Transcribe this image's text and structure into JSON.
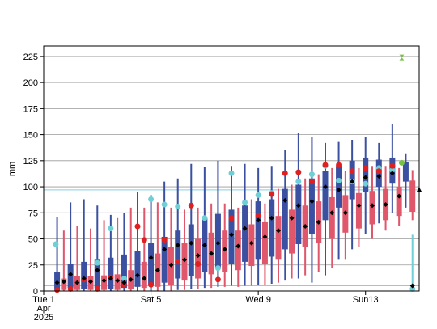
{
  "chart_data": {
    "type": "box",
    "ylabel": "mm",
    "ylim": [
      0,
      235
    ],
    "yticks": [
      0,
      25,
      50,
      75,
      100,
      125,
      150,
      175,
      200,
      225
    ],
    "xlim": [
      0,
      28
    ],
    "xticks": [
      {
        "x": 0,
        "lines": [
          "Tue 1",
          "Apr",
          "2025"
        ],
        "color": "#000000"
      },
      {
        "x": 8,
        "lines": [
          "Sat 5"
        ],
        "color": "#000000"
      },
      {
        "x": 16,
        "lines": [
          "Wed 9"
        ],
        "color": "#000000"
      },
      {
        "x": 24,
        "lines": [
          "Sun13"
        ],
        "color": "#cc0000"
      }
    ],
    "reference_lines": [
      {
        "y": 97,
        "color": "#7fd3e0"
      },
      {
        "y": 5,
        "color": "#7fd3e0"
      }
    ],
    "colors": {
      "blue_box": "#3b50a0",
      "red_box": "#e0566a",
      "mean_marker": "#000000",
      "red_marker": "#e02020",
      "cyan_marker": "#6fcfd6",
      "green_marker": "#77c043",
      "triangle_marker": "#000000",
      "grid": "#9a9a9a"
    },
    "series": [
      {
        "style": "blue",
        "boxes": [
          {
            "x": 1.0,
            "min": 0,
            "q1": 2,
            "med": 8,
            "q3": 18,
            "max": 71
          },
          {
            "x": 2.0,
            "min": 0,
            "q1": 3,
            "med": 14,
            "q3": 26,
            "max": 85
          },
          {
            "x": 3.0,
            "min": 0,
            "q1": 2,
            "med": 10,
            "q3": 28,
            "max": 88
          },
          {
            "x": 4.0,
            "min": 0,
            "q1": 3,
            "med": 12,
            "q3": 30,
            "max": 82
          },
          {
            "x": 5.0,
            "min": 0,
            "q1": 2,
            "med": 11,
            "q3": 32,
            "max": 73
          },
          {
            "x": 6.0,
            "min": 0,
            "q1": 3,
            "med": 12,
            "q3": 35,
            "max": 75
          },
          {
            "x": 7.0,
            "min": 0,
            "q1": 4,
            "med": 14,
            "q3": 38,
            "max": 95
          },
          {
            "x": 8.0,
            "min": 0,
            "q1": 6,
            "med": 18,
            "q3": 46,
            "max": 92
          },
          {
            "x": 9.0,
            "min": 0,
            "q1": 8,
            "med": 25,
            "q3": 52,
            "max": 105
          },
          {
            "x": 10.0,
            "min": 1,
            "q1": 12,
            "med": 30,
            "q3": 58,
            "max": 108
          },
          {
            "x": 11.0,
            "min": 2,
            "q1": 14,
            "med": 35,
            "q3": 64,
            "max": 122
          },
          {
            "x": 12.0,
            "min": 3,
            "q1": 18,
            "med": 43,
            "q3": 70,
            "max": 119
          },
          {
            "x": 13.0,
            "min": 4,
            "q1": 22,
            "med": 48,
            "q3": 74,
            "max": 125
          },
          {
            "x": 14.0,
            "min": 5,
            "q1": 26,
            "med": 52,
            "q3": 78,
            "max": 120
          },
          {
            "x": 15.0,
            "min": 5,
            "q1": 28,
            "med": 55,
            "q3": 82,
            "max": 122
          },
          {
            "x": 16.0,
            "min": 6,
            "q1": 30,
            "med": 58,
            "q3": 86,
            "max": 118
          },
          {
            "x": 17.0,
            "min": 7,
            "q1": 33,
            "med": 62,
            "q3": 88,
            "max": 120
          },
          {
            "x": 18.0,
            "min": 10,
            "q1": 40,
            "med": 70,
            "q3": 98,
            "max": 135
          },
          {
            "x": 19.0,
            "min": 12,
            "q1": 45,
            "med": 75,
            "q3": 102,
            "max": 152
          },
          {
            "x": 20.0,
            "min": 8,
            "q1": 55,
            "med": 86,
            "q3": 108,
            "max": 148
          },
          {
            "x": 21.0,
            "min": 15,
            "q1": 68,
            "med": 95,
            "q3": 115,
            "max": 142
          },
          {
            "x": 22.0,
            "min": 30,
            "q1": 80,
            "med": 100,
            "q3": 120,
            "max": 143
          },
          {
            "x": 23.0,
            "min": 40,
            "q1": 88,
            "med": 105,
            "q3": 125,
            "max": 145
          },
          {
            "x": 24.0,
            "min": 55,
            "q1": 95,
            "med": 108,
            "q3": 128,
            "max": 148
          },
          {
            "x": 25.0,
            "min": 65,
            "q1": 100,
            "med": 110,
            "q3": 126,
            "max": 142
          },
          {
            "x": 26.0,
            "min": 75,
            "q1": 103,
            "med": 112,
            "q3": 128,
            "max": 160
          },
          {
            "x": 27.0,
            "min": 80,
            "q1": 105,
            "med": 114,
            "q3": 124,
            "max": 132
          }
        ]
      },
      {
        "style": "red",
        "boxes": [
          {
            "x": 1.5,
            "min": 0,
            "q1": 1,
            "med": 4,
            "q3": 12,
            "max": 58
          },
          {
            "x": 2.5,
            "min": 0,
            "q1": 1,
            "med": 5,
            "q3": 14,
            "max": 62
          },
          {
            "x": 3.5,
            "min": 0,
            "q1": 1,
            "med": 5,
            "q3": 14,
            "max": 60
          },
          {
            "x": 4.5,
            "min": 0,
            "q1": 1,
            "med": 6,
            "q3": 15,
            "max": 68
          },
          {
            "x": 5.5,
            "min": 0,
            "q1": 1,
            "med": 6,
            "q3": 16,
            "max": 70
          },
          {
            "x": 6.5,
            "min": 0,
            "q1": 2,
            "med": 8,
            "q3": 20,
            "max": 80
          },
          {
            "x": 7.5,
            "min": 0,
            "q1": 3,
            "med": 10,
            "q3": 28,
            "max": 80
          },
          {
            "x": 8.5,
            "min": 0,
            "q1": 4,
            "med": 14,
            "q3": 36,
            "max": 85
          },
          {
            "x": 9.5,
            "min": 0,
            "q1": 6,
            "med": 18,
            "q3": 42,
            "max": 80
          },
          {
            "x": 10.5,
            "min": 1,
            "q1": 10,
            "med": 24,
            "q3": 46,
            "max": 78
          },
          {
            "x": 11.5,
            "min": 2,
            "q1": 12,
            "med": 28,
            "q3": 50,
            "max": 80
          },
          {
            "x": 12.5,
            "min": 3,
            "q1": 16,
            "med": 34,
            "q3": 56,
            "max": 84
          },
          {
            "x": 13.5,
            "min": 4,
            "q1": 18,
            "med": 36,
            "q3": 58,
            "max": 84
          },
          {
            "x": 14.5,
            "min": 4,
            "q1": 20,
            "med": 36,
            "q3": 58,
            "max": 80
          },
          {
            "x": 15.5,
            "min": 5,
            "q1": 24,
            "med": 42,
            "q3": 64,
            "max": 88
          },
          {
            "x": 16.5,
            "min": 6,
            "q1": 26,
            "med": 44,
            "q3": 66,
            "max": 84
          },
          {
            "x": 17.5,
            "min": 8,
            "q1": 30,
            "med": 50,
            "q3": 72,
            "max": 98
          },
          {
            "x": 18.5,
            "min": 12,
            "q1": 36,
            "med": 58,
            "q3": 78,
            "max": 102
          },
          {
            "x": 19.5,
            "min": 15,
            "q1": 42,
            "med": 62,
            "q3": 82,
            "max": 108
          },
          {
            "x": 20.5,
            "min": 18,
            "q1": 46,
            "med": 66,
            "q3": 86,
            "max": 112
          },
          {
            "x": 21.5,
            "min": 22,
            "q1": 50,
            "med": 70,
            "q3": 90,
            "max": 118
          },
          {
            "x": 22.5,
            "min": 30,
            "q1": 56,
            "med": 74,
            "q3": 92,
            "max": 115
          },
          {
            "x": 23.5,
            "min": 42,
            "q1": 60,
            "med": 76,
            "q3": 94,
            "max": 118
          },
          {
            "x": 24.5,
            "min": 50,
            "q1": 64,
            "med": 78,
            "q3": 96,
            "max": 120
          },
          {
            "x": 25.5,
            "min": 58,
            "q1": 68,
            "med": 80,
            "q3": 98,
            "max": 120
          },
          {
            "x": 26.5,
            "min": 62,
            "q1": 72,
            "med": 82,
            "q3": 100,
            "max": 118
          },
          {
            "x": 27.5,
            "min": 68,
            "q1": 76,
            "med": 84,
            "q3": 106,
            "max": 116
          }
        ]
      }
    ],
    "mean_points": [
      {
        "x": 1.0,
        "y": 8
      },
      {
        "x": 1.5,
        "y": 9
      },
      {
        "x": 2.0,
        "y": 16
      },
      {
        "x": 2.5,
        "y": 8
      },
      {
        "x": 3.0,
        "y": 12
      },
      {
        "x": 3.5,
        "y": 9
      },
      {
        "x": 4.0,
        "y": 20
      },
      {
        "x": 4.5,
        "y": 10
      },
      {
        "x": 5.0,
        "y": 12
      },
      {
        "x": 5.5,
        "y": 10
      },
      {
        "x": 6.0,
        "y": 8
      },
      {
        "x": 6.5,
        "y": 11
      },
      {
        "x": 7.0,
        "y": 15
      },
      {
        "x": 7.5,
        "y": 12
      },
      {
        "x": 8.0,
        "y": 32
      },
      {
        "x": 8.5,
        "y": 20
      },
      {
        "x": 9.0,
        "y": 40
      },
      {
        "x": 9.5,
        "y": 25
      },
      {
        "x": 10.0,
        "y": 44
      },
      {
        "x": 10.5,
        "y": 30
      },
      {
        "x": 11.0,
        "y": 46
      },
      {
        "x": 11.5,
        "y": 34
      },
      {
        "x": 12.0,
        "y": 44
      },
      {
        "x": 12.5,
        "y": 36
      },
      {
        "x": 13.0,
        "y": 46
      },
      {
        "x": 13.5,
        "y": 40
      },
      {
        "x": 14.0,
        "y": 54
      },
      {
        "x": 14.5,
        "y": 43
      },
      {
        "x": 15.0,
        "y": 60
      },
      {
        "x": 15.5,
        "y": 46
      },
      {
        "x": 16.0,
        "y": 68
      },
      {
        "x": 16.5,
        "y": 52
      },
      {
        "x": 17.0,
        "y": 70
      },
      {
        "x": 17.5,
        "y": 58
      },
      {
        "x": 18.0,
        "y": 87
      },
      {
        "x": 18.5,
        "y": 70
      },
      {
        "x": 19.0,
        "y": 82
      },
      {
        "x": 19.5,
        "y": 62
      },
      {
        "x": 20.0,
        "y": 86
      },
      {
        "x": 20.5,
        "y": 66
      },
      {
        "x": 21.0,
        "y": 100
      },
      {
        "x": 21.5,
        "y": 75
      },
      {
        "x": 22.0,
        "y": 97
      },
      {
        "x": 22.5,
        "y": 75
      },
      {
        "x": 23.0,
        "y": 105
      },
      {
        "x": 23.5,
        "y": 82
      },
      {
        "x": 24.0,
        "y": 109
      },
      {
        "x": 24.5,
        "y": 82
      },
      {
        "x": 25.0,
        "y": 110
      },
      {
        "x": 25.5,
        "y": 83
      },
      {
        "x": 26.0,
        "y": 113
      },
      {
        "x": 26.5,
        "y": 91
      },
      {
        "x": 27.5,
        "y": 5
      }
    ],
    "red_points": [
      {
        "x": 1.0,
        "y": 1
      },
      {
        "x": 2.0,
        "y": 2
      },
      {
        "x": 3.0,
        "y": 11
      },
      {
        "x": 4.0,
        "y": 2
      },
      {
        "x": 5.0,
        "y": 13
      },
      {
        "x": 6.0,
        "y": 6
      },
      {
        "x": 7.0,
        "y": 62
      },
      {
        "x": 7.5,
        "y": 49
      },
      {
        "x": 8.0,
        "y": 6
      },
      {
        "x": 9.0,
        "y": 49
      },
      {
        "x": 10.0,
        "y": 28
      },
      {
        "x": 11.0,
        "y": 82
      },
      {
        "x": 11.5,
        "y": 26
      },
      {
        "x": 13.0,
        "y": 11
      },
      {
        "x": 14.0,
        "y": 70
      },
      {
        "x": 16.0,
        "y": 72
      },
      {
        "x": 17.0,
        "y": 93
      },
      {
        "x": 18.0,
        "y": 113
      },
      {
        "x": 19.0,
        "y": 114
      },
      {
        "x": 20.0,
        "y": 105
      },
      {
        "x": 21.0,
        "y": 121
      },
      {
        "x": 22.0,
        "y": 121
      },
      {
        "x": 23.0,
        "y": 115
      },
      {
        "x": 24.0,
        "y": 118
      },
      {
        "x": 25.0,
        "y": 115
      },
      {
        "x": 26.0,
        "y": 120
      }
    ],
    "cyan_points": [
      {
        "x": 0.9,
        "y": 45
      },
      {
        "x": 4.0,
        "y": 27
      },
      {
        "x": 5.0,
        "y": 60
      },
      {
        "x": 6.0,
        "y": 12
      },
      {
        "x": 8.0,
        "y": 88
      },
      {
        "x": 9.0,
        "y": 83
      },
      {
        "x": 10.0,
        "y": 81
      },
      {
        "x": 12.0,
        "y": 70
      },
      {
        "x": 13.0,
        "y": 22
      },
      {
        "x": 14.0,
        "y": 113
      },
      {
        "x": 15.0,
        "y": 85
      },
      {
        "x": 16.0,
        "y": 92
      },
      {
        "x": 17.0,
        "y": 94
      },
      {
        "x": 19.0,
        "y": 105
      },
      {
        "x": 20.0,
        "y": 112
      },
      {
        "x": 21.0,
        "y": 120
      },
      {
        "x": 22.0,
        "y": 106
      },
      {
        "x": 23.0,
        "y": 105
      },
      {
        "x": 24.0,
        "y": 103
      },
      {
        "x": 25.0,
        "y": 118
      },
      {
        "x": 26.0,
        "y": 116
      },
      {
        "x": 27.5,
        "y": 2
      }
    ],
    "cyan_whisker": {
      "x": 27.5,
      "min": 0,
      "max": 54
    },
    "green_points": [
      {
        "x": 26.7,
        "y": 123
      },
      {
        "x": 26.7,
        "y": 224
      }
    ],
    "triangle_points": [
      {
        "x": 28.0,
        "y": 97
      }
    ]
  }
}
